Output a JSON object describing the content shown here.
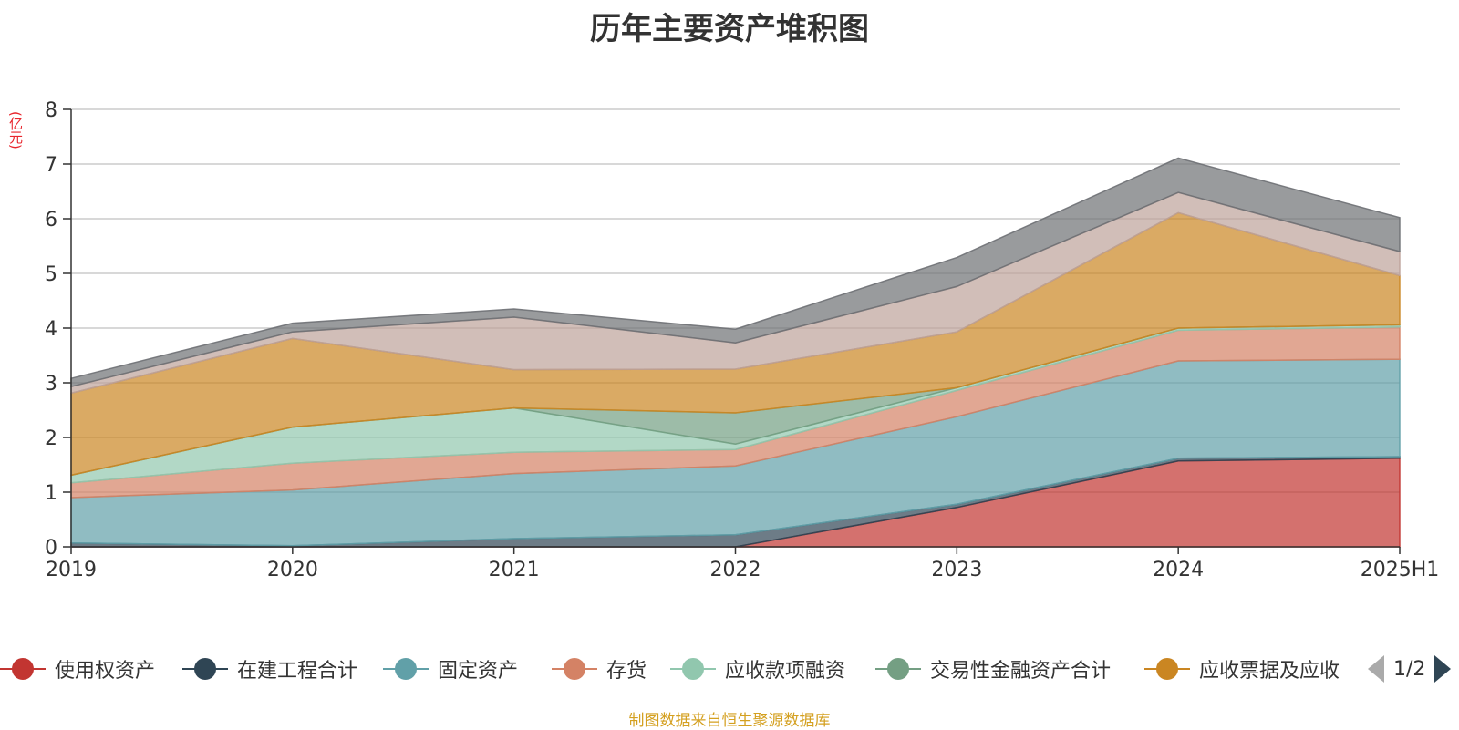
{
  "title": "历年主要资产堆积图",
  "unit": "(亿元)",
  "source": "制图数据来自恒生聚源数据库",
  "pager": {
    "text": "1/2"
  },
  "chart_data": {
    "type": "area",
    "stacked": true,
    "x": [
      "2019",
      "2020",
      "2021",
      "2022",
      "2023",
      "2024",
      "2025H1"
    ],
    "ylim": [
      0,
      8
    ],
    "yticks": [
      0,
      1,
      2,
      3,
      4,
      5,
      6,
      7,
      8
    ],
    "grid": true,
    "legend_position": "bottom",
    "series": [
      {
        "name": "使用权资产",
        "color": "#c23531",
        "values": [
          0,
          0,
          0,
          0,
          0.72,
          1.57,
          1.62
        ]
      },
      {
        "name": "在建工程合计",
        "color": "#2f4554",
        "values": [
          0.07,
          0.02,
          0.15,
          0.22,
          0.06,
          0.05,
          0.03
        ]
      },
      {
        "name": "固定资产",
        "color": "#61a0a8",
        "values": [
          0.83,
          1.02,
          1.19,
          1.26,
          1.6,
          1.78,
          1.78
        ]
      },
      {
        "name": "存货",
        "color": "#d48265",
        "values": [
          0.27,
          0.49,
          0.39,
          0.3,
          0.48,
          0.56,
          0.59
        ]
      },
      {
        "name": "应收款项融资",
        "color": "#91c7ae",
        "values": [
          0.14,
          0.66,
          0.81,
          0.1,
          0.05,
          0.04,
          0.04
        ]
      },
      {
        "name": "交易性金融资产合计",
        "color": "#749f83",
        "values": [
          0,
          0,
          0,
          0.57,
          0,
          0,
          0
        ]
      },
      {
        "name": "应收票据及应收",
        "color": "#ca8622",
        "values": [
          1.5,
          1.62,
          0.7,
          0.8,
          1.02,
          2.11,
          0.9
        ]
      },
      {
        "name": "",
        "color": "#bda29a",
        "values": [
          0.12,
          0.12,
          0.96,
          0.48,
          0.83,
          0.37,
          0.44
        ]
      },
      {
        "name": "",
        "color": "#6e7074",
        "values": [
          0.15,
          0.16,
          0.15,
          0.25,
          0.53,
          0.63,
          0.62
        ]
      }
    ],
    "legend_visible": [
      "使用权资产",
      "在建工程合计",
      "固定资产",
      "存货",
      "应收款项融资",
      "交易性金融资产合计",
      "应收票据及应收"
    ]
  }
}
